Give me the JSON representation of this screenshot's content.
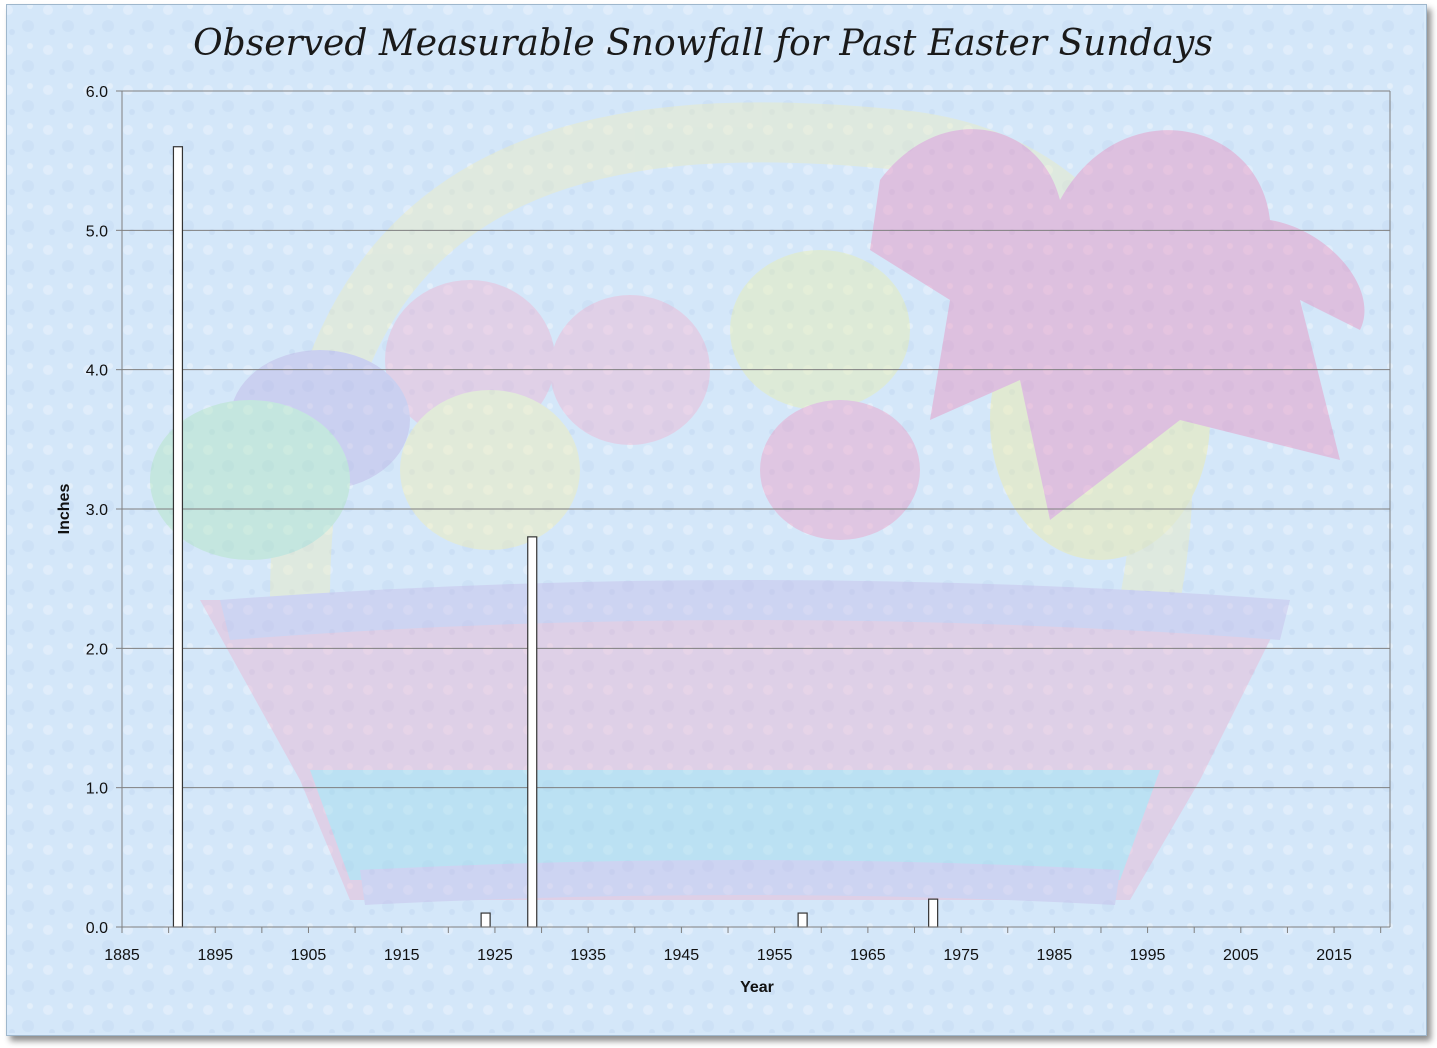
{
  "colors": {
    "background": "#d4e7f9",
    "bar_fill": "#ffffff",
    "bar_stroke": "#333333",
    "gridline": "#7f7f7f",
    "axis": "#7f7f7f"
  },
  "chart_data": {
    "type": "bar",
    "title": "Observed Measurable Snowfall for Past Easter Sundays",
    "xlabel": "Year",
    "ylabel": "Inches",
    "xlim": [
      1885,
      2021
    ],
    "ylim": [
      0,
      6
    ],
    "grid": true,
    "legend": "none",
    "x_ticks": [
      "1885",
      "1895",
      "1905",
      "1915",
      "1925",
      "1935",
      "1945",
      "1955",
      "1965",
      "1975",
      "1985",
      "1995",
      "2005",
      "2015"
    ],
    "y_ticks": [
      "0.0",
      "1.0",
      "2.0",
      "3.0",
      "4.0",
      "5.0",
      "6.0"
    ],
    "x": [
      1891,
      1924,
      1929,
      1958,
      1972
    ],
    "values": [
      5.6,
      0.1,
      2.8,
      0.1,
      0.2
    ]
  }
}
